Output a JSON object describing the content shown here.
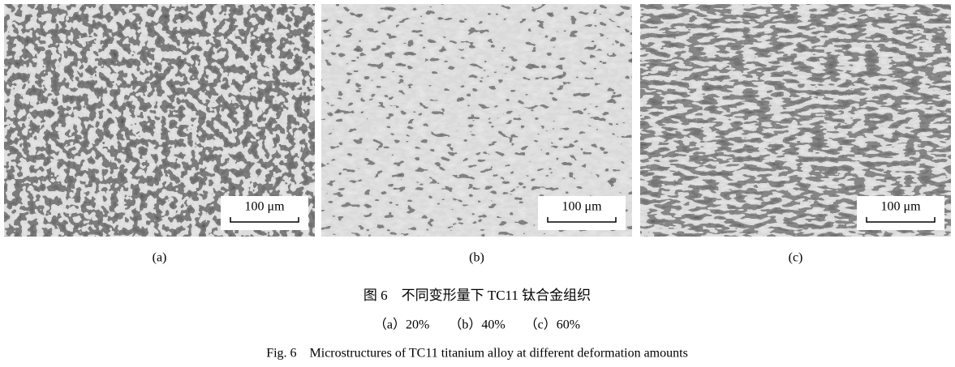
{
  "panels": [
    {
      "label": "(a)",
      "scale_bar": "100 μm"
    },
    {
      "label": "(b)",
      "scale_bar": "100 μm"
    },
    {
      "label": "(c)",
      "scale_bar": "100 μm"
    }
  ],
  "caption": {
    "zh_title": "图 6　不同变形量下 TC11 钛合金组织",
    "zh_subtitle": "（a）20%　　（b）40%　　（c）60%",
    "en": "Fig. 6　Microstructures of TC11 titanium alloy at different deformation amounts"
  }
}
